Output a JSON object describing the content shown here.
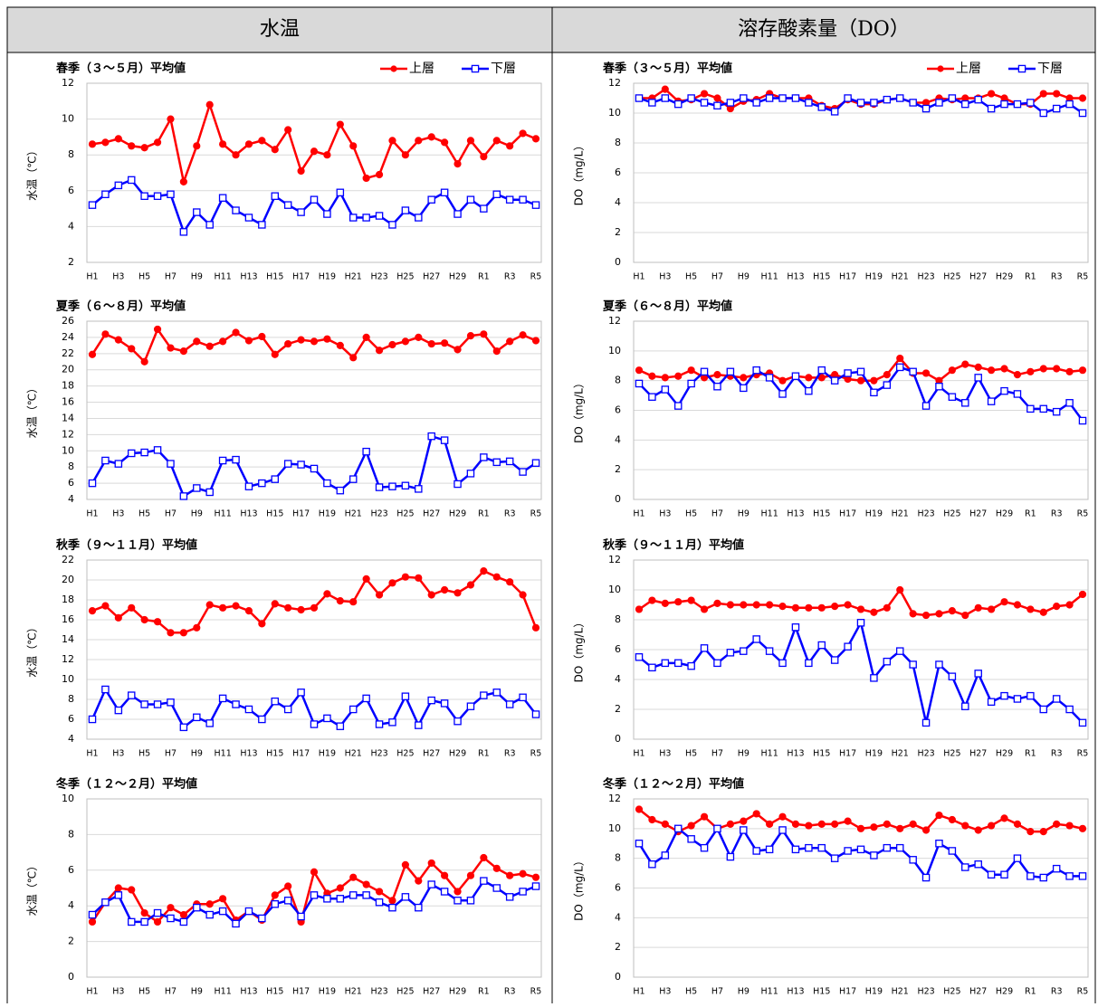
{
  "header": [
    "水温",
    "溶存酸素量（DO）"
  ],
  "chart_data": [
    {
      "type": "line",
      "title": "春季（３～５月）平均値",
      "y_label": "水温（℃）",
      "legend": "top-right",
      "grid": true,
      "categories": [
        "H1",
        null,
        "H3",
        null,
        "H5",
        null,
        "H7",
        null,
        "H9",
        null,
        "H11",
        null,
        "H13",
        null,
        "H15",
        null,
        "H17",
        null,
        "H19",
        null,
        "H21",
        null,
        "H23",
        null,
        "H25",
        null,
        "H27",
        null,
        "H29",
        null,
        "R1",
        null,
        "R3",
        null,
        "R5"
      ],
      "ylim": [
        2,
        12
      ],
      "yticks": [
        2,
        4,
        6,
        8,
        10,
        12
      ],
      "series": [
        {
          "name": "上層",
          "color": "#ff0000",
          "marker": "circle",
          "values": [
            8.6,
            8.7,
            8.9,
            8.5,
            8.4,
            8.7,
            10.0,
            6.5,
            8.5,
            10.8,
            8.6,
            8.0,
            8.6,
            8.8,
            8.3,
            9.4,
            7.1,
            8.2,
            8.0,
            9.7,
            8.5,
            6.7,
            6.9,
            8.8,
            8.0,
            8.8,
            9.0,
            8.7,
            7.5,
            8.8,
            7.9,
            8.8,
            8.5,
            9.2,
            8.9
          ]
        },
        {
          "name": "下層",
          "color": "#0000ff",
          "marker": "square",
          "values": [
            5.2,
            5.8,
            6.3,
            6.6,
            5.7,
            5.7,
            5.8,
            3.7,
            4.8,
            4.1,
            5.6,
            4.9,
            4.5,
            4.1,
            5.7,
            5.2,
            4.8,
            5.5,
            4.7,
            5.9,
            4.5,
            4.5,
            4.6,
            4.1,
            4.9,
            4.5,
            5.5,
            5.9,
            4.7,
            5.5,
            5.0,
            5.8,
            5.5,
            5.5,
            5.2
          ]
        }
      ]
    },
    {
      "type": "line",
      "title": "夏季（６～８月）平均値",
      "y_label": "水温（℃）",
      "grid": true,
      "categories": [
        "H1",
        null,
        "H3",
        null,
        "H5",
        null,
        "H7",
        null,
        "H9",
        null,
        "H11",
        null,
        "H13",
        null,
        "H15",
        null,
        "H17",
        null,
        "H19",
        null,
        "H21",
        null,
        "H23",
        null,
        "H25",
        null,
        "H27",
        null,
        "H29",
        null,
        "R1",
        null,
        "R3",
        null,
        "R5"
      ],
      "ylim": [
        4,
        26
      ],
      "yticks": [
        4,
        6,
        8,
        10,
        12,
        14,
        16,
        18,
        20,
        22,
        24,
        26
      ],
      "series": [
        {
          "color": "#ff0000",
          "marker": "circle",
          "values": [
            21.9,
            24.4,
            23.7,
            22.6,
            21.0,
            25.0,
            22.7,
            22.3,
            23.5,
            22.9,
            23.5,
            24.6,
            23.6,
            24.1,
            21.9,
            23.2,
            23.7,
            23.5,
            23.8,
            23.0,
            21.5,
            24.0,
            22.4,
            23.1,
            23.5,
            24.0,
            23.2,
            23.3,
            22.5,
            24.2,
            24.4,
            22.3,
            23.5,
            24.3,
            23.6
          ]
        },
        {
          "color": "#0000ff",
          "marker": "square",
          "values": [
            6.0,
            8.8,
            8.4,
            9.7,
            9.8,
            10.1,
            8.4,
            4.4,
            5.4,
            4.9,
            8.8,
            8.9,
            5.6,
            6.0,
            6.5,
            8.4,
            8.3,
            7.8,
            6.0,
            5.1,
            6.5,
            9.9,
            5.5,
            5.6,
            5.7,
            5.3,
            11.8,
            11.3,
            5.9,
            7.2,
            9.2,
            8.6,
            8.7,
            7.4,
            8.5
          ]
        }
      ]
    },
    {
      "type": "line",
      "title": "秋季（９～１１月）平均値",
      "y_label": "水温（℃）",
      "grid": true,
      "categories": [
        "H1",
        null,
        "H3",
        null,
        "H5",
        null,
        "H7",
        null,
        "H9",
        null,
        "H11",
        null,
        "H13",
        null,
        "H15",
        null,
        "H17",
        null,
        "H19",
        null,
        "H21",
        null,
        "H23",
        null,
        "H25",
        null,
        "H27",
        null,
        "H29",
        null,
        "R1",
        null,
        "R3",
        null,
        "R5"
      ],
      "ylim": [
        4,
        22
      ],
      "yticks": [
        4,
        6,
        8,
        10,
        12,
        14,
        16,
        18,
        20,
        22
      ],
      "series": [
        {
          "color": "#ff0000",
          "marker": "circle",
          "values": [
            16.9,
            17.4,
            16.2,
            17.2,
            16.0,
            15.8,
            14.7,
            14.7,
            15.2,
            17.5,
            17.2,
            17.4,
            16.9,
            15.6,
            17.6,
            17.2,
            17.0,
            17.2,
            18.6,
            17.9,
            17.8,
            20.1,
            18.5,
            19.7,
            20.3,
            20.2,
            18.5,
            19.0,
            18.7,
            19.5,
            20.9,
            20.3,
            19.8,
            18.5,
            15.2
          ]
        },
        {
          "color": "#0000ff",
          "marker": "square",
          "values": [
            6.0,
            9.0,
            6.9,
            8.4,
            7.5,
            7.5,
            7.7,
            5.2,
            6.2,
            5.6,
            8.1,
            7.5,
            7.0,
            6.0,
            7.8,
            7.0,
            8.7,
            5.5,
            6.1,
            5.3,
            7.0,
            8.1,
            5.5,
            5.7,
            8.3,
            5.4,
            7.9,
            7.6,
            5.8,
            7.3,
            8.4,
            8.7,
            7.5,
            8.2,
            6.5
          ]
        }
      ]
    },
    {
      "type": "line",
      "title": "冬季（１２～２月）平均値",
      "y_label": "水温（℃）",
      "grid": true,
      "categories": [
        "H1",
        null,
        "H3",
        null,
        "H5",
        null,
        "H7",
        null,
        "H9",
        null,
        "H11",
        null,
        "H13",
        null,
        "H15",
        null,
        "H17",
        null,
        "H19",
        null,
        "H21",
        null,
        "H23",
        null,
        "H25",
        null,
        "H27",
        null,
        "H29",
        null,
        "R1",
        null,
        "R3",
        null,
        "R5"
      ],
      "ylim": [
        0,
        10
      ],
      "yticks": [
        0,
        2,
        4,
        6,
        8,
        10
      ],
      "series": [
        {
          "color": "#ff0000",
          "marker": "circle",
          "values": [
            3.1,
            4.2,
            5.0,
            4.9,
            3.6,
            3.1,
            3.9,
            3.5,
            4.1,
            4.1,
            4.4,
            3.2,
            3.7,
            3.2,
            4.6,
            5.1,
            3.1,
            5.9,
            4.7,
            5.0,
            5.6,
            5.2,
            4.8,
            4.3,
            6.3,
            5.4,
            6.4,
            5.7,
            4.8,
            5.7,
            6.7,
            6.1,
            5.7,
            5.8,
            5.6
          ]
        },
        {
          "color": "#0000ff",
          "marker": "square",
          "values": [
            3.5,
            4.2,
            4.6,
            3.1,
            3.1,
            3.6,
            3.3,
            3.1,
            3.9,
            3.5,
            3.7,
            3.0,
            3.7,
            3.3,
            4.1,
            4.3,
            3.4,
            4.6,
            4.4,
            4.4,
            4.6,
            4.6,
            4.2,
            3.9,
            4.5,
            3.9,
            5.2,
            4.8,
            4.3,
            4.3,
            5.4,
            5.0,
            4.5,
            4.8,
            5.1
          ]
        }
      ]
    },
    {
      "type": "line",
      "title": "春季（３～５月）平均値",
      "y_label": "DO（mg/L）",
      "legend": "top-right",
      "grid": true,
      "categories": [
        "H1",
        null,
        "H3",
        null,
        "H5",
        null,
        "H7",
        null,
        "H9",
        null,
        "H11",
        null,
        "H13",
        null,
        "H15",
        null,
        "H17",
        null,
        "H19",
        null,
        "H21",
        null,
        "H23",
        null,
        "H25",
        null,
        "H27",
        null,
        "H29",
        null,
        "R1",
        null,
        "R3",
        null,
        "R5"
      ],
      "ylim": [
        0,
        12
      ],
      "yticks": [
        0,
        2,
        4,
        6,
        8,
        10,
        12
      ],
      "series": [
        {
          "name": "上層",
          "color": "#ff0000",
          "marker": "circle",
          "values": [
            11.0,
            11.0,
            11.6,
            10.8,
            10.9,
            11.3,
            11.0,
            10.3,
            10.8,
            10.9,
            11.3,
            11.0,
            11.0,
            11.0,
            10.5,
            10.3,
            10.9,
            10.6,
            10.6,
            10.9,
            11.0,
            10.7,
            10.7,
            11.0,
            10.9,
            11.0,
            11.0,
            11.3,
            11.0,
            10.6,
            10.6,
            11.3,
            11.3,
            11.0,
            11.0
          ]
        },
        {
          "name": "下層",
          "color": "#0000ff",
          "marker": "square",
          "values": [
            11.0,
            10.7,
            11.0,
            10.6,
            11.0,
            10.7,
            10.5,
            10.7,
            11.0,
            10.7,
            11.0,
            11.0,
            11.0,
            10.7,
            10.4,
            10.1,
            11.0,
            10.7,
            10.7,
            10.9,
            11.0,
            10.7,
            10.3,
            10.7,
            11.0,
            10.6,
            10.9,
            10.3,
            10.6,
            10.6,
            10.7,
            10.0,
            10.3,
            10.6,
            10.0
          ]
        }
      ]
    },
    {
      "type": "line",
      "title": "夏季（６～８月）平均値",
      "y_label": "DO（mg/L）",
      "grid": true,
      "categories": [
        "H1",
        null,
        "H3",
        null,
        "H5",
        null,
        "H7",
        null,
        "H9",
        null,
        "H11",
        null,
        "H13",
        null,
        "H15",
        null,
        "H17",
        null,
        "H19",
        null,
        "H21",
        null,
        "H23",
        null,
        "H25",
        null,
        "H27",
        null,
        "H29",
        null,
        "R1",
        null,
        "R3",
        null,
        "R5"
      ],
      "ylim": [
        0,
        12
      ],
      "yticks": [
        0,
        2,
        4,
        6,
        8,
        10,
        12
      ],
      "series": [
        {
          "color": "#ff0000",
          "marker": "circle",
          "values": [
            8.7,
            8.3,
            8.2,
            8.3,
            8.7,
            8.2,
            8.4,
            8.3,
            8.2,
            8.4,
            8.5,
            8.0,
            8.3,
            8.2,
            8.2,
            8.4,
            8.1,
            8.0,
            8.0,
            8.4,
            9.5,
            8.5,
            8.5,
            8.0,
            8.7,
            9.1,
            8.9,
            8.7,
            8.8,
            8.4,
            8.6,
            8.8,
            8.8,
            8.6,
            8.7
          ]
        },
        {
          "color": "#0000ff",
          "marker": "square",
          "values": [
            7.8,
            6.9,
            7.4,
            6.3,
            7.8,
            8.6,
            7.6,
            8.6,
            7.5,
            8.7,
            8.2,
            7.1,
            8.3,
            7.3,
            8.7,
            8.0,
            8.5,
            8.6,
            7.2,
            7.7,
            8.9,
            8.6,
            6.3,
            7.6,
            6.9,
            6.5,
            8.2,
            6.6,
            7.3,
            7.1,
            6.1,
            6.1,
            5.9,
            6.5,
            5.3
          ]
        }
      ]
    },
    {
      "type": "line",
      "title": "秋季（９～１１月）平均値",
      "y_label": "DO（mg/L）",
      "grid": true,
      "categories": [
        "H1",
        null,
        "H3",
        null,
        "H5",
        null,
        "H7",
        null,
        "H9",
        null,
        "H11",
        null,
        "H13",
        null,
        "H15",
        null,
        "H17",
        null,
        "H19",
        null,
        "H21",
        null,
        "H23",
        null,
        "H25",
        null,
        "H27",
        null,
        "H29",
        null,
        "R1",
        null,
        "R3",
        null,
        "R5"
      ],
      "ylim": [
        0,
        12
      ],
      "yticks": [
        0,
        2,
        4,
        6,
        8,
        10,
        12
      ],
      "series": [
        {
          "color": "#ff0000",
          "marker": "circle",
          "values": [
            8.7,
            9.3,
            9.1,
            9.2,
            9.3,
            8.7,
            9.1,
            9.0,
            9.0,
            9.0,
            9.0,
            8.9,
            8.8,
            8.8,
            8.8,
            8.9,
            9.0,
            8.7,
            8.5,
            8.8,
            10.0,
            8.4,
            8.3,
            8.4,
            8.6,
            8.3,
            8.8,
            8.7,
            9.2,
            9.0,
            8.7,
            8.5,
            8.9,
            9.0,
            9.7
          ]
        },
        {
          "color": "#0000ff",
          "marker": "square",
          "values": [
            5.5,
            4.8,
            5.1,
            5.1,
            4.9,
            6.1,
            5.1,
            5.8,
            5.9,
            6.7,
            5.9,
            5.1,
            7.5,
            5.1,
            6.3,
            5.3,
            6.2,
            7.8,
            4.1,
            5.2,
            5.9,
            5.0,
            1.1,
            5.0,
            4.2,
            2.2,
            4.4,
            2.5,
            2.9,
            2.7,
            2.9,
            2.0,
            2.7,
            2.0,
            1.1
          ]
        }
      ]
    },
    {
      "type": "line",
      "title": "冬季（１２～２月）平均値",
      "y_label": "DO（mg/L）",
      "grid": true,
      "categories": [
        "H1",
        null,
        "H3",
        null,
        "H5",
        null,
        "H7",
        null,
        "H9",
        null,
        "H11",
        null,
        "H13",
        null,
        "H15",
        null,
        "H17",
        null,
        "H19",
        null,
        "H21",
        null,
        "H23",
        null,
        "H25",
        null,
        "H27",
        null,
        "H29",
        null,
        "R1",
        null,
        "R3",
        null,
        "R5"
      ],
      "ylim": [
        0,
        12
      ],
      "yticks": [
        0,
        2,
        4,
        6,
        8,
        10,
        12
      ],
      "series": [
        {
          "color": "#ff0000",
          "marker": "circle",
          "values": [
            11.3,
            10.6,
            10.3,
            9.8,
            10.2,
            10.8,
            10.0,
            10.3,
            10.5,
            11.0,
            10.3,
            10.8,
            10.3,
            10.2,
            10.3,
            10.3,
            10.5,
            10.0,
            10.1,
            10.3,
            10.0,
            10.3,
            9.9,
            10.9,
            10.6,
            10.2,
            9.9,
            10.2,
            10.7,
            10.3,
            9.8,
            9.8,
            10.3,
            10.2,
            10.0
          ]
        },
        {
          "color": "#0000ff",
          "marker": "square",
          "values": [
            9.0,
            7.6,
            8.2,
            10.0,
            9.3,
            8.7,
            10.0,
            8.1,
            9.9,
            8.5,
            8.6,
            9.9,
            8.6,
            8.7,
            8.7,
            8.0,
            8.5,
            8.6,
            8.2,
            8.7,
            8.7,
            7.9,
            6.7,
            9.0,
            8.5,
            7.4,
            7.6,
            6.9,
            6.9,
            8.0,
            6.8,
            6.7,
            7.3,
            6.8,
            6.8
          ]
        }
      ]
    }
  ]
}
